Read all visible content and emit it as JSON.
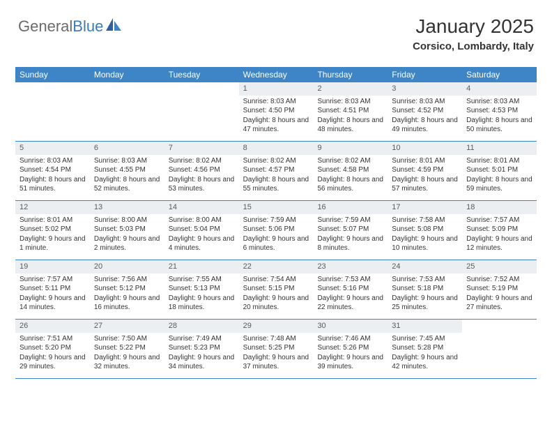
{
  "logo": {
    "text1": "General",
    "text2": "Blue"
  },
  "header": {
    "month_title": "January 2025",
    "location": "Corsico, Lombardy, Italy"
  },
  "colors": {
    "header_bg": "#3d85c6",
    "header_text": "#ffffff",
    "daynum_bg": "#eceff1",
    "daynum_text": "#5a5a5a",
    "border": "#3d85c6",
    "body_text": "#333333",
    "logo_gray": "#6b6b6b",
    "logo_blue": "#3d7bb8"
  },
  "weekdays": [
    "Sunday",
    "Monday",
    "Tuesday",
    "Wednesday",
    "Thursday",
    "Friday",
    "Saturday"
  ],
  "weeks": [
    [
      {
        "n": "",
        "sr": "",
        "ss": "",
        "dl": ""
      },
      {
        "n": "",
        "sr": "",
        "ss": "",
        "dl": ""
      },
      {
        "n": "",
        "sr": "",
        "ss": "",
        "dl": ""
      },
      {
        "n": "1",
        "sr": "Sunrise: 8:03 AM",
        "ss": "Sunset: 4:50 PM",
        "dl": "Daylight: 8 hours and 47 minutes."
      },
      {
        "n": "2",
        "sr": "Sunrise: 8:03 AM",
        "ss": "Sunset: 4:51 PM",
        "dl": "Daylight: 8 hours and 48 minutes."
      },
      {
        "n": "3",
        "sr": "Sunrise: 8:03 AM",
        "ss": "Sunset: 4:52 PM",
        "dl": "Daylight: 8 hours and 49 minutes."
      },
      {
        "n": "4",
        "sr": "Sunrise: 8:03 AM",
        "ss": "Sunset: 4:53 PM",
        "dl": "Daylight: 8 hours and 50 minutes."
      }
    ],
    [
      {
        "n": "5",
        "sr": "Sunrise: 8:03 AM",
        "ss": "Sunset: 4:54 PM",
        "dl": "Daylight: 8 hours and 51 minutes."
      },
      {
        "n": "6",
        "sr": "Sunrise: 8:03 AM",
        "ss": "Sunset: 4:55 PM",
        "dl": "Daylight: 8 hours and 52 minutes."
      },
      {
        "n": "7",
        "sr": "Sunrise: 8:02 AM",
        "ss": "Sunset: 4:56 PM",
        "dl": "Daylight: 8 hours and 53 minutes."
      },
      {
        "n": "8",
        "sr": "Sunrise: 8:02 AM",
        "ss": "Sunset: 4:57 PM",
        "dl": "Daylight: 8 hours and 55 minutes."
      },
      {
        "n": "9",
        "sr": "Sunrise: 8:02 AM",
        "ss": "Sunset: 4:58 PM",
        "dl": "Daylight: 8 hours and 56 minutes."
      },
      {
        "n": "10",
        "sr": "Sunrise: 8:01 AM",
        "ss": "Sunset: 4:59 PM",
        "dl": "Daylight: 8 hours and 57 minutes."
      },
      {
        "n": "11",
        "sr": "Sunrise: 8:01 AM",
        "ss": "Sunset: 5:01 PM",
        "dl": "Daylight: 8 hours and 59 minutes."
      }
    ],
    [
      {
        "n": "12",
        "sr": "Sunrise: 8:01 AM",
        "ss": "Sunset: 5:02 PM",
        "dl": "Daylight: 9 hours and 1 minute."
      },
      {
        "n": "13",
        "sr": "Sunrise: 8:00 AM",
        "ss": "Sunset: 5:03 PM",
        "dl": "Daylight: 9 hours and 2 minutes."
      },
      {
        "n": "14",
        "sr": "Sunrise: 8:00 AM",
        "ss": "Sunset: 5:04 PM",
        "dl": "Daylight: 9 hours and 4 minutes."
      },
      {
        "n": "15",
        "sr": "Sunrise: 7:59 AM",
        "ss": "Sunset: 5:06 PM",
        "dl": "Daylight: 9 hours and 6 minutes."
      },
      {
        "n": "16",
        "sr": "Sunrise: 7:59 AM",
        "ss": "Sunset: 5:07 PM",
        "dl": "Daylight: 9 hours and 8 minutes."
      },
      {
        "n": "17",
        "sr": "Sunrise: 7:58 AM",
        "ss": "Sunset: 5:08 PM",
        "dl": "Daylight: 9 hours and 10 minutes."
      },
      {
        "n": "18",
        "sr": "Sunrise: 7:57 AM",
        "ss": "Sunset: 5:09 PM",
        "dl": "Daylight: 9 hours and 12 minutes."
      }
    ],
    [
      {
        "n": "19",
        "sr": "Sunrise: 7:57 AM",
        "ss": "Sunset: 5:11 PM",
        "dl": "Daylight: 9 hours and 14 minutes."
      },
      {
        "n": "20",
        "sr": "Sunrise: 7:56 AM",
        "ss": "Sunset: 5:12 PM",
        "dl": "Daylight: 9 hours and 16 minutes."
      },
      {
        "n": "21",
        "sr": "Sunrise: 7:55 AM",
        "ss": "Sunset: 5:13 PM",
        "dl": "Daylight: 9 hours and 18 minutes."
      },
      {
        "n": "22",
        "sr": "Sunrise: 7:54 AM",
        "ss": "Sunset: 5:15 PM",
        "dl": "Daylight: 9 hours and 20 minutes."
      },
      {
        "n": "23",
        "sr": "Sunrise: 7:53 AM",
        "ss": "Sunset: 5:16 PM",
        "dl": "Daylight: 9 hours and 22 minutes."
      },
      {
        "n": "24",
        "sr": "Sunrise: 7:53 AM",
        "ss": "Sunset: 5:18 PM",
        "dl": "Daylight: 9 hours and 25 minutes."
      },
      {
        "n": "25",
        "sr": "Sunrise: 7:52 AM",
        "ss": "Sunset: 5:19 PM",
        "dl": "Daylight: 9 hours and 27 minutes."
      }
    ],
    [
      {
        "n": "26",
        "sr": "Sunrise: 7:51 AM",
        "ss": "Sunset: 5:20 PM",
        "dl": "Daylight: 9 hours and 29 minutes."
      },
      {
        "n": "27",
        "sr": "Sunrise: 7:50 AM",
        "ss": "Sunset: 5:22 PM",
        "dl": "Daylight: 9 hours and 32 minutes."
      },
      {
        "n": "28",
        "sr": "Sunrise: 7:49 AM",
        "ss": "Sunset: 5:23 PM",
        "dl": "Daylight: 9 hours and 34 minutes."
      },
      {
        "n": "29",
        "sr": "Sunrise: 7:48 AM",
        "ss": "Sunset: 5:25 PM",
        "dl": "Daylight: 9 hours and 37 minutes."
      },
      {
        "n": "30",
        "sr": "Sunrise: 7:46 AM",
        "ss": "Sunset: 5:26 PM",
        "dl": "Daylight: 9 hours and 39 minutes."
      },
      {
        "n": "31",
        "sr": "Sunrise: 7:45 AM",
        "ss": "Sunset: 5:28 PM",
        "dl": "Daylight: 9 hours and 42 minutes."
      },
      {
        "n": "",
        "sr": "",
        "ss": "",
        "dl": ""
      }
    ]
  ]
}
